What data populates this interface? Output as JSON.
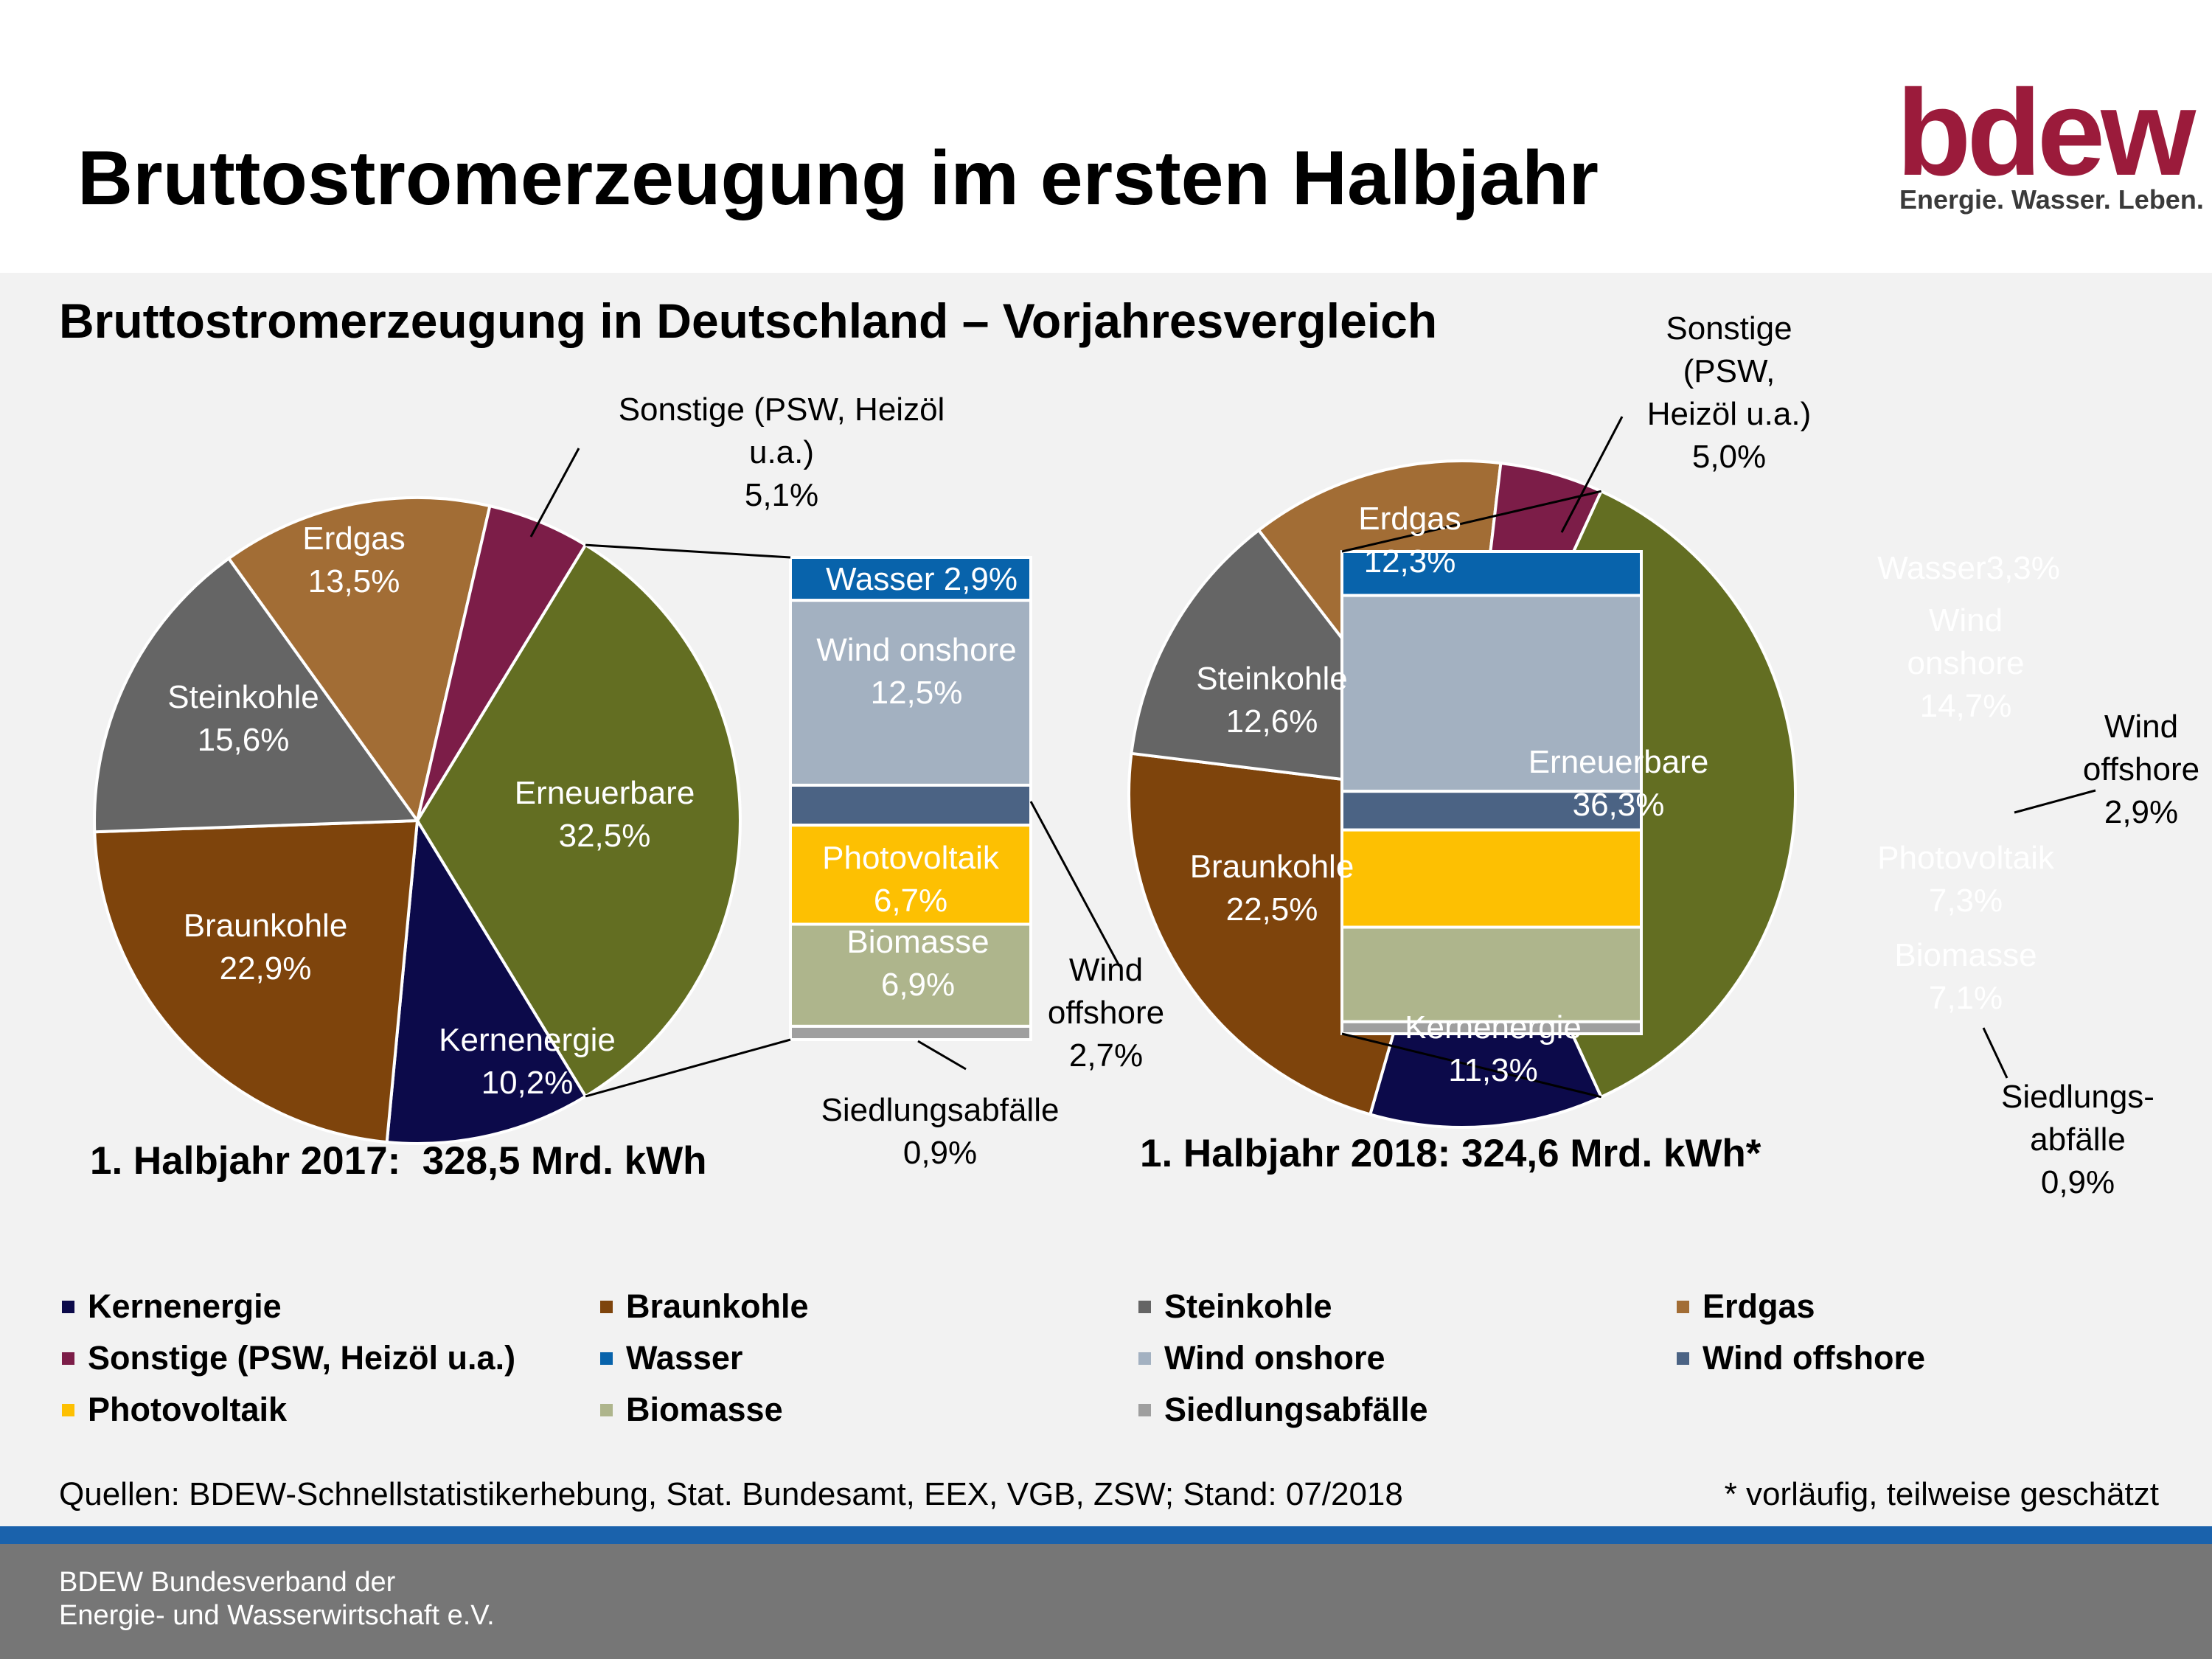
{
  "header": {
    "title": "Bruttostromerzeugung im ersten Halbjahr",
    "logo_word": "bdew",
    "logo_tagline": "Energie. Wasser. Leben."
  },
  "subtitle": "Bruttostromerzeugung in Deutschland – Vorjahresvergleich",
  "chart_data": [
    {
      "type": "pie",
      "period": "1. Halbjahr 2017",
      "total_label": "1. Halbjahr 2017:  328,5 Mrd. kWh",
      "slices": [
        {
          "name": "Erneuerbare",
          "value": 32.5,
          "label": [
            "Erneuerbare",
            "32,5%"
          ],
          "color": "#636e22"
        },
        {
          "name": "Kernenergie",
          "value": 10.2,
          "label": [
            "Kernenergie",
            "10,2%"
          ],
          "color": "#0c0a4a"
        },
        {
          "name": "Braunkohle",
          "value": 22.9,
          "label": [
            "Braunkohle",
            "22,9%"
          ],
          "color": "#7e440c"
        },
        {
          "name": "Steinkohle",
          "value": 15.6,
          "label": [
            "Steinkohle",
            "15,6%"
          ],
          "color": "#656565"
        },
        {
          "name": "Erdgas",
          "value": 13.5,
          "label": [
            "Erdgas",
            "13,5%"
          ],
          "color": "#a26d35"
        },
        {
          "name": "Sonstige (PSW, Heizöl u.a.)",
          "value": 5.1,
          "label": [
            "Sonstige (PSW, Heizöl",
            "u.a.)",
            "5,1%"
          ],
          "color": "#7c1d48"
        }
      ],
      "breakdown": [
        {
          "name": "Wasser",
          "value": 2.9,
          "label": [
            "Wasser 2,9%"
          ],
          "color": "#0863ab"
        },
        {
          "name": "Wind onshore",
          "value": 12.5,
          "label": [
            "Wind onshore",
            "12,5%"
          ],
          "color": "#a3b1c1"
        },
        {
          "name": "Wind offshore",
          "value": 2.7,
          "label": [
            "Wind",
            "offshore",
            "2,7%"
          ],
          "color": "#4b6384"
        },
        {
          "name": "Photovoltaik",
          "value": 6.7,
          "label": [
            "Photovoltaik",
            "6,7%"
          ],
          "color": "#fdc002"
        },
        {
          "name": "Biomasse",
          "value": 6.9,
          "label": [
            "Biomasse",
            "6,9%"
          ],
          "color": "#aeb58c"
        },
        {
          "name": "Siedlungsabfälle",
          "value": 0.9,
          "label": [
            "Siedlungsabfälle",
            "0,9%"
          ],
          "color": "#9f9f9f"
        }
      ]
    },
    {
      "type": "pie",
      "period": "1. Halbjahr 2018",
      "total_label": "1. Halbjahr 2018: 324,6 Mrd. kWh*",
      "slices": [
        {
          "name": "Erneuerbare",
          "value": 36.3,
          "label": [
            "Erneuerbare",
            "36,3%"
          ],
          "color": "#636e22"
        },
        {
          "name": "Kernenergie",
          "value": 11.3,
          "label": [
            "Kernenergie",
            "11,3%"
          ],
          "color": "#0c0a4a"
        },
        {
          "name": "Braunkohle",
          "value": 22.5,
          "label": [
            "Braunkohle",
            "22,5%"
          ],
          "color": "#7e440c"
        },
        {
          "name": "Steinkohle",
          "value": 12.6,
          "label": [
            "Steinkohle",
            "12,6%"
          ],
          "color": "#656565"
        },
        {
          "name": "Erdgas",
          "value": 12.3,
          "label": [
            "Erdgas",
            "12,3%"
          ],
          "color": "#a26d35"
        },
        {
          "name": "Sonstige (PSW, Heizöl u.a.)",
          "value": 5.0,
          "label": [
            "Sonstige",
            "(PSW,",
            "Heizöl u.a.)",
            "5,0%"
          ],
          "color": "#7c1d48"
        }
      ],
      "breakdown": [
        {
          "name": "Wasser",
          "value": 3.3,
          "label": [
            "Wasser3,3%"
          ],
          "color": "#0863ab"
        },
        {
          "name": "Wind onshore",
          "value": 14.7,
          "label": [
            "Wind",
            "onshore",
            "14,7%"
          ],
          "color": "#a3b1c1"
        },
        {
          "name": "Wind offshore",
          "value": 2.9,
          "label": [
            "Wind",
            "offshore",
            "2,9%"
          ],
          "color": "#4b6384"
        },
        {
          "name": "Photovoltaik",
          "value": 7.3,
          "label": [
            "Photovoltaik",
            "7,3%"
          ],
          "color": "#fdc002"
        },
        {
          "name": "Biomasse",
          "value": 7.1,
          "label": [
            "Biomasse",
            "7,1%"
          ],
          "color": "#aeb58c"
        },
        {
          "name": "Siedlungsabfälle",
          "value": 0.9,
          "label": [
            "Siedlungs-",
            "abfälle",
            "0,9%"
          ],
          "color": "#9f9f9f"
        }
      ]
    }
  ],
  "legend": [
    {
      "label": "Kernenergie",
      "color": "#0c0a4a"
    },
    {
      "label": "Braunkohle",
      "color": "#7e440c"
    },
    {
      "label": "Steinkohle",
      "color": "#656565"
    },
    {
      "label": "Erdgas",
      "color": "#a26d35"
    },
    {
      "label": "Sonstige (PSW, Heizöl u.a.)",
      "color": "#7c1d48"
    },
    {
      "label": "Wasser",
      "color": "#0863ab"
    },
    {
      "label": "Wind onshore",
      "color": "#a3b1c1"
    },
    {
      "label": "Wind offshore",
      "color": "#4b6384"
    },
    {
      "label": "Photovoltaik",
      "color": "#fdc002"
    },
    {
      "label": "Biomasse",
      "color": "#aeb58c"
    },
    {
      "label": "Siedlungsabfälle",
      "color": "#9f9f9f"
    }
  ],
  "sources": "Quellen: BDEW-Schnellstatistikerhebung, Stat. Bundesamt, EEX, VGB, ZSW; Stand: 07/2018",
  "footnote": "* vorläufig, teilweise geschätzt",
  "footer": {
    "line1": "BDEW Bundesverband der",
    "line2": "Energie- und Wasserwirtschaft e.V."
  }
}
